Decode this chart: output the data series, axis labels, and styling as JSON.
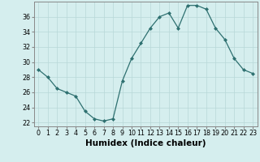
{
  "x": [
    0,
    1,
    2,
    3,
    4,
    5,
    6,
    7,
    8,
    9,
    10,
    11,
    12,
    13,
    14,
    15,
    16,
    17,
    18,
    19,
    20,
    21,
    22,
    23
  ],
  "y": [
    29,
    28,
    26.5,
    26,
    25.5,
    23.5,
    22.5,
    22.2,
    22.5,
    27.5,
    30.5,
    32.5,
    34.5,
    36,
    36.5,
    34.5,
    37.5,
    37.5,
    37,
    34.5,
    33,
    30.5,
    29,
    28.5
  ],
  "xlabel": "Humidex (Indice chaleur)",
  "xlim": [
    -0.5,
    23.5
  ],
  "ylim": [
    21.5,
    38.0
  ],
  "yticks": [
    22,
    24,
    26,
    28,
    30,
    32,
    34,
    36
  ],
  "xticks": [
    0,
    1,
    2,
    3,
    4,
    5,
    6,
    7,
    8,
    9,
    10,
    11,
    12,
    13,
    14,
    15,
    16,
    17,
    18,
    19,
    20,
    21,
    22,
    23
  ],
  "line_color": "#2e7070",
  "marker": "D",
  "marker_size": 2.0,
  "bg_color": "#d5eeee",
  "grid_color": "#b8d8d8",
  "tick_label_fontsize": 5.8,
  "xlabel_fontsize": 7.5
}
